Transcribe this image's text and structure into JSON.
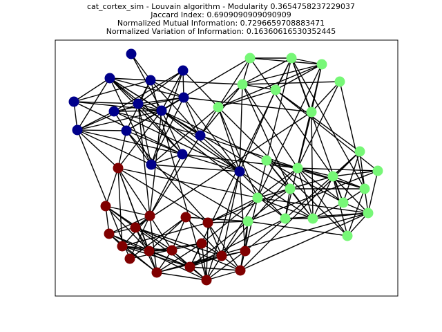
{
  "titles": {
    "line1": "cat_cortex_sim - Louvain algorithm - Modularity 0.3654758237229037",
    "line2": "Jaccard Index: 0.6909090909090909",
    "line3": "Normalized Mutual Information: 0.7296659708883471",
    "line4": "Normalized Variation of Information: 0.16360616530352445"
  },
  "colors": {
    "community_0": "#00008b",
    "community_1": "#77f777",
    "community_2": "#800000",
    "edge": "#000000",
    "frame": "#000000",
    "background": "#ffffff"
  },
  "chart_data": {
    "type": "network",
    "layout": "spring",
    "communities": 3,
    "axes_visible": false
  }
}
